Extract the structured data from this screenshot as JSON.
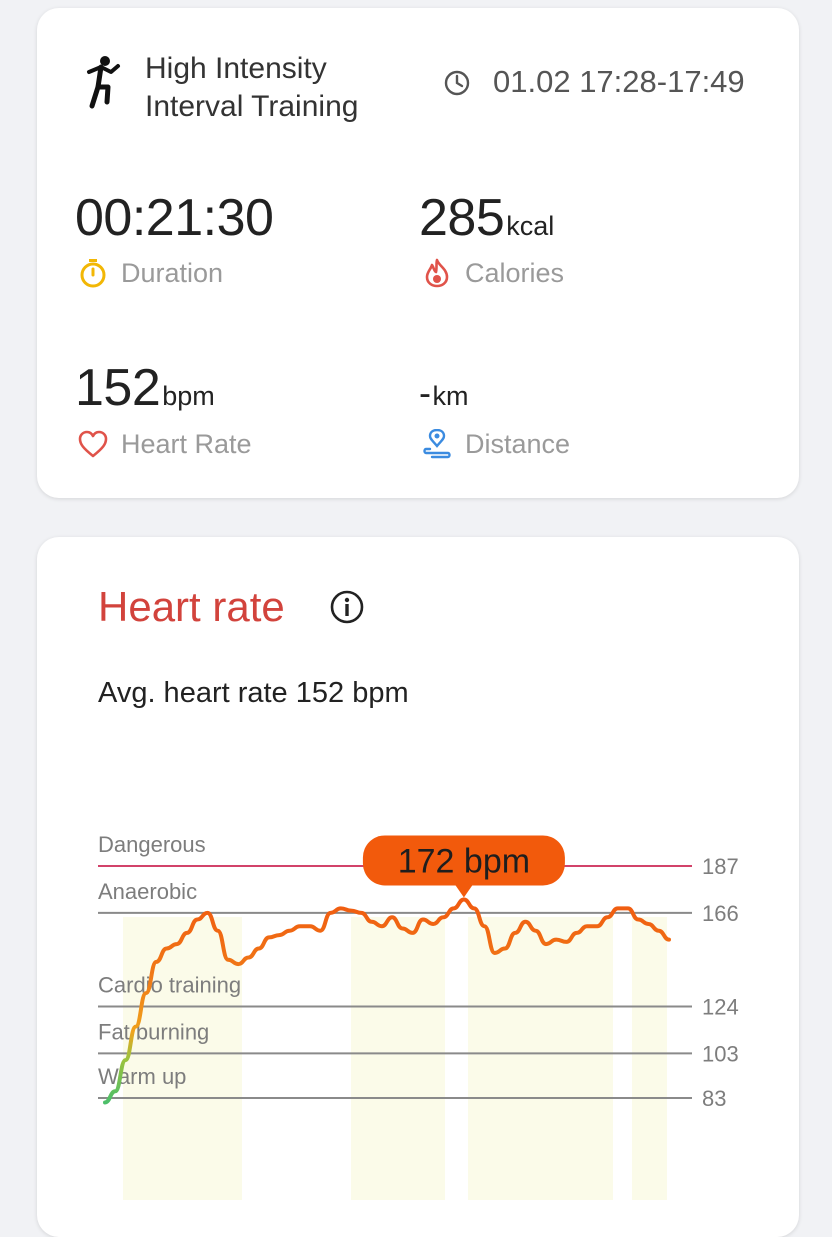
{
  "workout": {
    "title_line1": "High Intensity",
    "title_line2": "Interval Training",
    "date_range": "01.02 17:28-17:49",
    "icon": "running-person-icon"
  },
  "metrics": {
    "duration": {
      "value": "00:21:30",
      "label": "Duration",
      "icon": "stopwatch-icon",
      "color": "#f2b705"
    },
    "calories": {
      "value": "285",
      "unit": "kcal",
      "label": "Calories",
      "icon": "flame-icon",
      "color": "#e0534a"
    },
    "heart_rate": {
      "value": "152",
      "unit": "bpm",
      "label": "Heart Rate",
      "icon": "heart-icon",
      "color": "#e0534a"
    },
    "distance": {
      "value": "-",
      "unit": "km",
      "label": "Distance",
      "icon": "location-pin-icon",
      "color": "#3b8be0"
    }
  },
  "heart_rate_section": {
    "title": "Heart rate",
    "avg_text": "Avg. heart rate 152 bpm",
    "info_icon": "info-icon"
  },
  "chart_data": {
    "type": "line",
    "title": "",
    "xlabel": "",
    "ylabel": "",
    "ylim": [
      70,
      190
    ],
    "zones": [
      {
        "name": "Dangerous",
        "threshold": 187,
        "color": "#d2436a"
      },
      {
        "name": "Anaerobic",
        "threshold": 166
      },
      {
        "name": "Cardio training",
        "threshold": 124
      },
      {
        "name": "Fat burning",
        "threshold": 103
      },
      {
        "name": "Warm up",
        "threshold": 83
      }
    ],
    "tick_labels": [
      "187",
      "166",
      "124",
      "103",
      "83"
    ],
    "peak_label": "172 bpm",
    "peak_value": 172,
    "series": [
      {
        "values": [
          81,
          86,
          100,
          115,
          130,
          144,
          150,
          152,
          157,
          163,
          166,
          158,
          145,
          143,
          146,
          150,
          155,
          156,
          158,
          160,
          160,
          158,
          166,
          168,
          167,
          166,
          162,
          160,
          164,
          159,
          157,
          163,
          161,
          164,
          168,
          172,
          168,
          160,
          148,
          150,
          157,
          162,
          158,
          152,
          154,
          153,
          157,
          160,
          160,
          164,
          168,
          168,
          163,
          161,
          158,
          154
        ]
      }
    ]
  }
}
